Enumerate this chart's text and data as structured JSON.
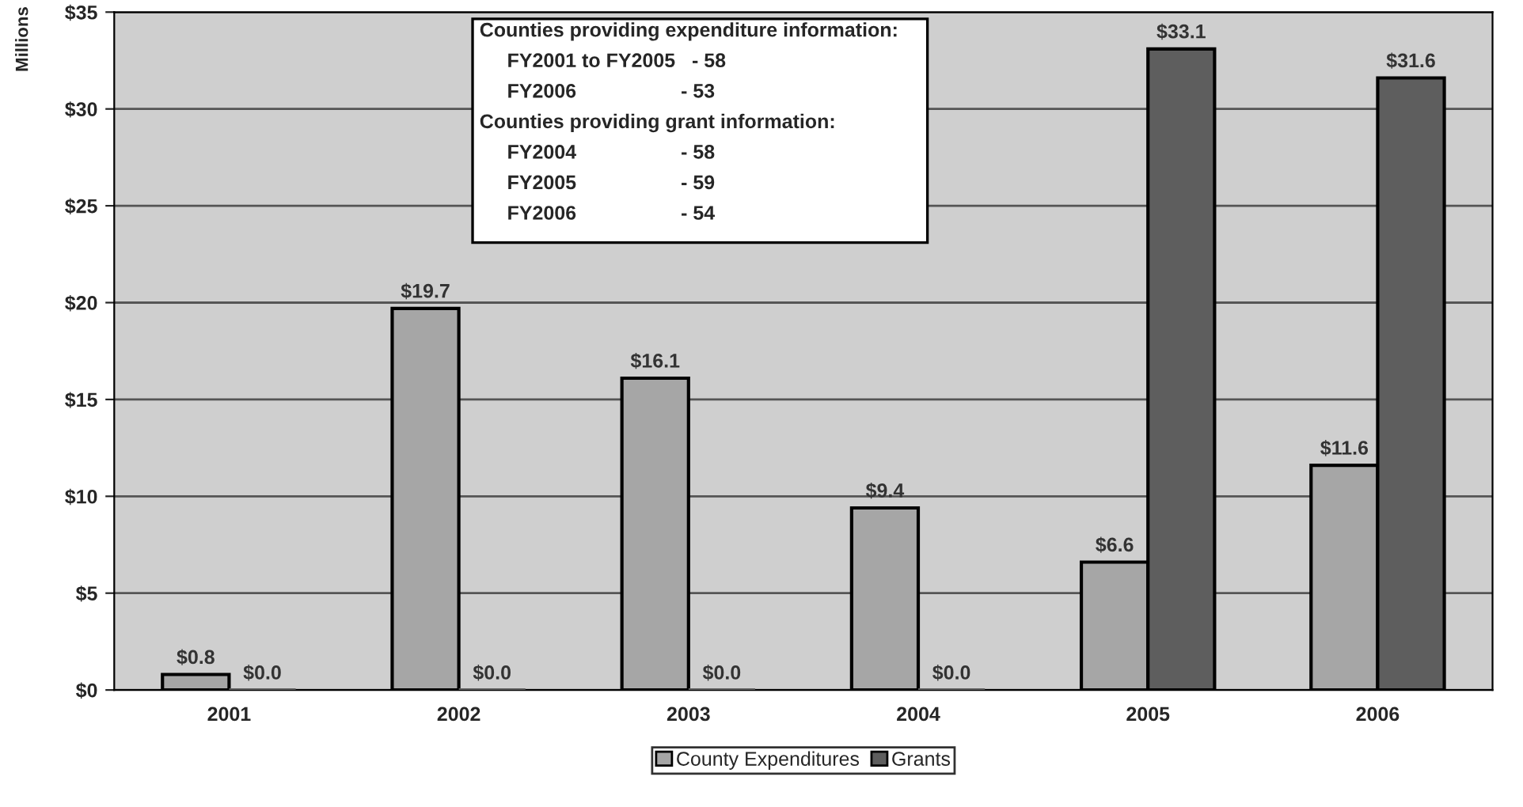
{
  "chart_data": {
    "type": "bar",
    "ylabel": "Millions",
    "categories": [
      "2001",
      "2002",
      "2003",
      "2004",
      "2005",
      "2006"
    ],
    "series": [
      {
        "name": "County Expenditures",
        "color": "#a6a6a6",
        "values": [
          0.8,
          19.7,
          16.1,
          9.4,
          6.6,
          11.6
        ],
        "value_labels": [
          "$0.8",
          "$19.7",
          "$16.1",
          "$9.4",
          "$6.6",
          "$11.6"
        ]
      },
      {
        "name": "Grants",
        "color": "#5e5e5e",
        "values": [
          0.0,
          0.0,
          0.0,
          0.0,
          33.1,
          31.6
        ],
        "value_labels": [
          "$0.0",
          "$0.0",
          "$0.0",
          "$0.0",
          "$33.1",
          "$31.6"
        ]
      }
    ],
    "ylim": [
      0,
      35
    ],
    "yticks": [
      {
        "value": 0,
        "label": "$0"
      },
      {
        "value": 5,
        "label": "$5"
      },
      {
        "value": 10,
        "label": "$10"
      },
      {
        "value": 15,
        "label": "$15"
      },
      {
        "value": 20,
        "label": "$20"
      },
      {
        "value": 25,
        "label": "$25"
      },
      {
        "value": 30,
        "label": "$30"
      },
      {
        "value": 35,
        "label": "$35"
      }
    ],
    "grid": "y",
    "legend": "bottom",
    "annotations": [
      "Counties providing expenditure information:",
      "FY2001 to FY2005   - 58",
      "FY2006                   - 53",
      "Counties providing grant information:",
      "FY2004                   - 58",
      "FY2005                   - 59",
      "FY2006                   - 54"
    ]
  }
}
